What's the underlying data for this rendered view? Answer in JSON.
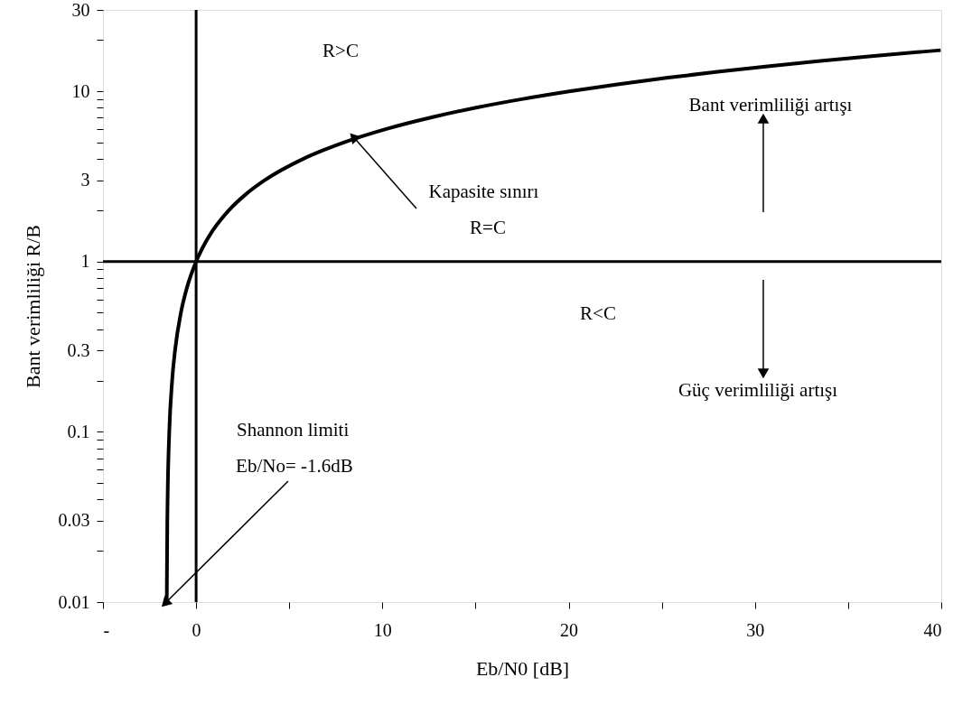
{
  "chart_data": {
    "type": "line",
    "xlabel": "Eb/N0 [dB]",
    "ylabel": "Bant verimliliği R/B",
    "x": [
      -1.576,
      -1.547,
      -1.517,
      -1.441,
      -1.287,
      -1.133,
      -0.817,
      -0.495,
      0,
      0.339,
      0.859,
      1.761,
      2.702,
      3.68,
      5.74,
      6.82,
      7.924,
      10.21,
      12.59,
      15.03,
      17.54,
      20.1,
      22.7,
      25.33,
      27.99,
      30.68,
      33.39,
      36.12,
      38.87,
      39.97
    ],
    "series": [
      {
        "color": "#000000",
        "values": [
          0.01,
          0.03,
          0.05,
          0.1,
          0.2,
          0.3,
          0.5,
          0.7,
          1,
          1.2,
          1.5,
          2,
          2.5,
          3,
          4,
          4.5,
          5,
          6,
          7,
          8,
          9,
          10,
          11,
          12,
          13,
          14,
          15,
          16,
          17,
          17.4
        ]
      }
    ],
    "log": "y",
    "xlim": [
      -5,
      40
    ],
    "ylim": [
      0.01,
      30
    ],
    "xticks": [
      {
        "value": -5,
        "label": "-"
      },
      0,
      {
        "value": 5,
        "label": null
      },
      10,
      {
        "value": 15,
        "label": null
      },
      20,
      {
        "value": 25,
        "label": null
      },
      30,
      {
        "value": 35,
        "label": null
      },
      40
    ],
    "yticks": [
      0.01,
      {
        "value": 0.02,
        "label": null
      },
      0.03,
      {
        "value": 0.04,
        "label": null
      },
      {
        "value": 0.05,
        "label": null
      },
      {
        "value": 0.06,
        "label": null
      },
      {
        "value": 0.07,
        "label": null
      },
      {
        "value": 0.08,
        "label": null
      },
      {
        "value": 0.09,
        "label": null
      },
      0.1,
      {
        "value": 0.2,
        "label": null
      },
      0.3,
      {
        "value": 0.4,
        "label": null
      },
      {
        "value": 0.5,
        "label": null
      },
      {
        "value": 0.6,
        "label": null
      },
      {
        "value": 0.7,
        "label": null
      },
      {
        "value": 0.8,
        "label": null
      },
      {
        "value": 0.9,
        "label": null
      },
      1,
      {
        "value": 2,
        "label": null
      },
      3,
      {
        "value": 4,
        "label": null
      },
      {
        "value": 5,
        "label": null
      },
      {
        "value": 6,
        "label": null
      },
      {
        "value": 7,
        "label": null
      },
      {
        "value": 8,
        "label": null
      },
      {
        "value": 9,
        "label": null
      },
      10,
      {
        "value": 20,
        "label": null
      },
      30
    ],
    "ref_lines": [
      {
        "axis": "x",
        "value": 0,
        "color": "#000000"
      },
      {
        "axis": "y",
        "value": 1,
        "color": "#000000"
      }
    ],
    "annotations": [
      "R>C",
      {
        "text": "Kapasite sınırı",
        "x": 8.5,
        "y": 5.3
      },
      "R=C",
      "Bant verimliliği artışı",
      "R<C",
      "Güç verimliliği artışı",
      "Shannon limiti",
      {
        "text": "Eb/No= -1.6dB",
        "x": -1.6,
        "y": 0.01
      }
    ],
    "grid": false,
    "marker": "none",
    "line_style": "solid"
  }
}
